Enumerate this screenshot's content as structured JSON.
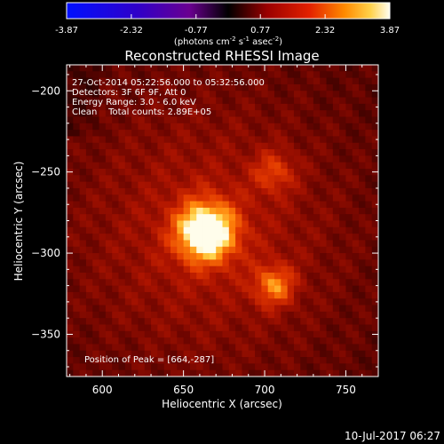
{
  "chart_data": {
    "type": "heatmap",
    "title": "Reconstructed RHESSI Image",
    "xlabel": "Heliocentric X (arcsec)",
    "ylabel": "Heliocentric Y (arcsec)",
    "xlim": [
      578,
      770
    ],
    "ylim": [
      -376,
      -184
    ],
    "x_ticks": [
      600,
      650,
      700,
      750
    ],
    "y_ticks": [
      -200,
      -250,
      -300,
      -350
    ],
    "colorbar": {
      "ticks": [
        "-3.87",
        "-2.32",
        "-0.77",
        "0.77",
        "2.32",
        "3.87"
      ],
      "range": [
        -3.87,
        3.87
      ],
      "units_prefix": "(photons cm",
      "units_sup1": "-2",
      "units_mid1": " s",
      "units_sup2": "-1",
      "units_mid2": " asec",
      "units_sup3": "-2",
      "units_suffix": ")"
    },
    "info_lines": [
      "27-Oct-2014 05:22:56.000 to 05:32:56.000",
      "Detectors: 3F 6F 9F, Att 0",
      "Energy Range: 3.0 - 6.0 keV",
      "Clean    Total counts: 2.89E+05"
    ],
    "peak_text": "Position of Peak = [664,-287]",
    "sources": [
      {
        "x": 664,
        "y": -287,
        "value": 3.87
      },
      {
        "x": 706,
        "y": -320,
        "value": 2.1
      },
      {
        "x": 706,
        "y": -250,
        "value": 1.4
      }
    ]
  },
  "timestamp": "10-Jul-2017 06:27"
}
